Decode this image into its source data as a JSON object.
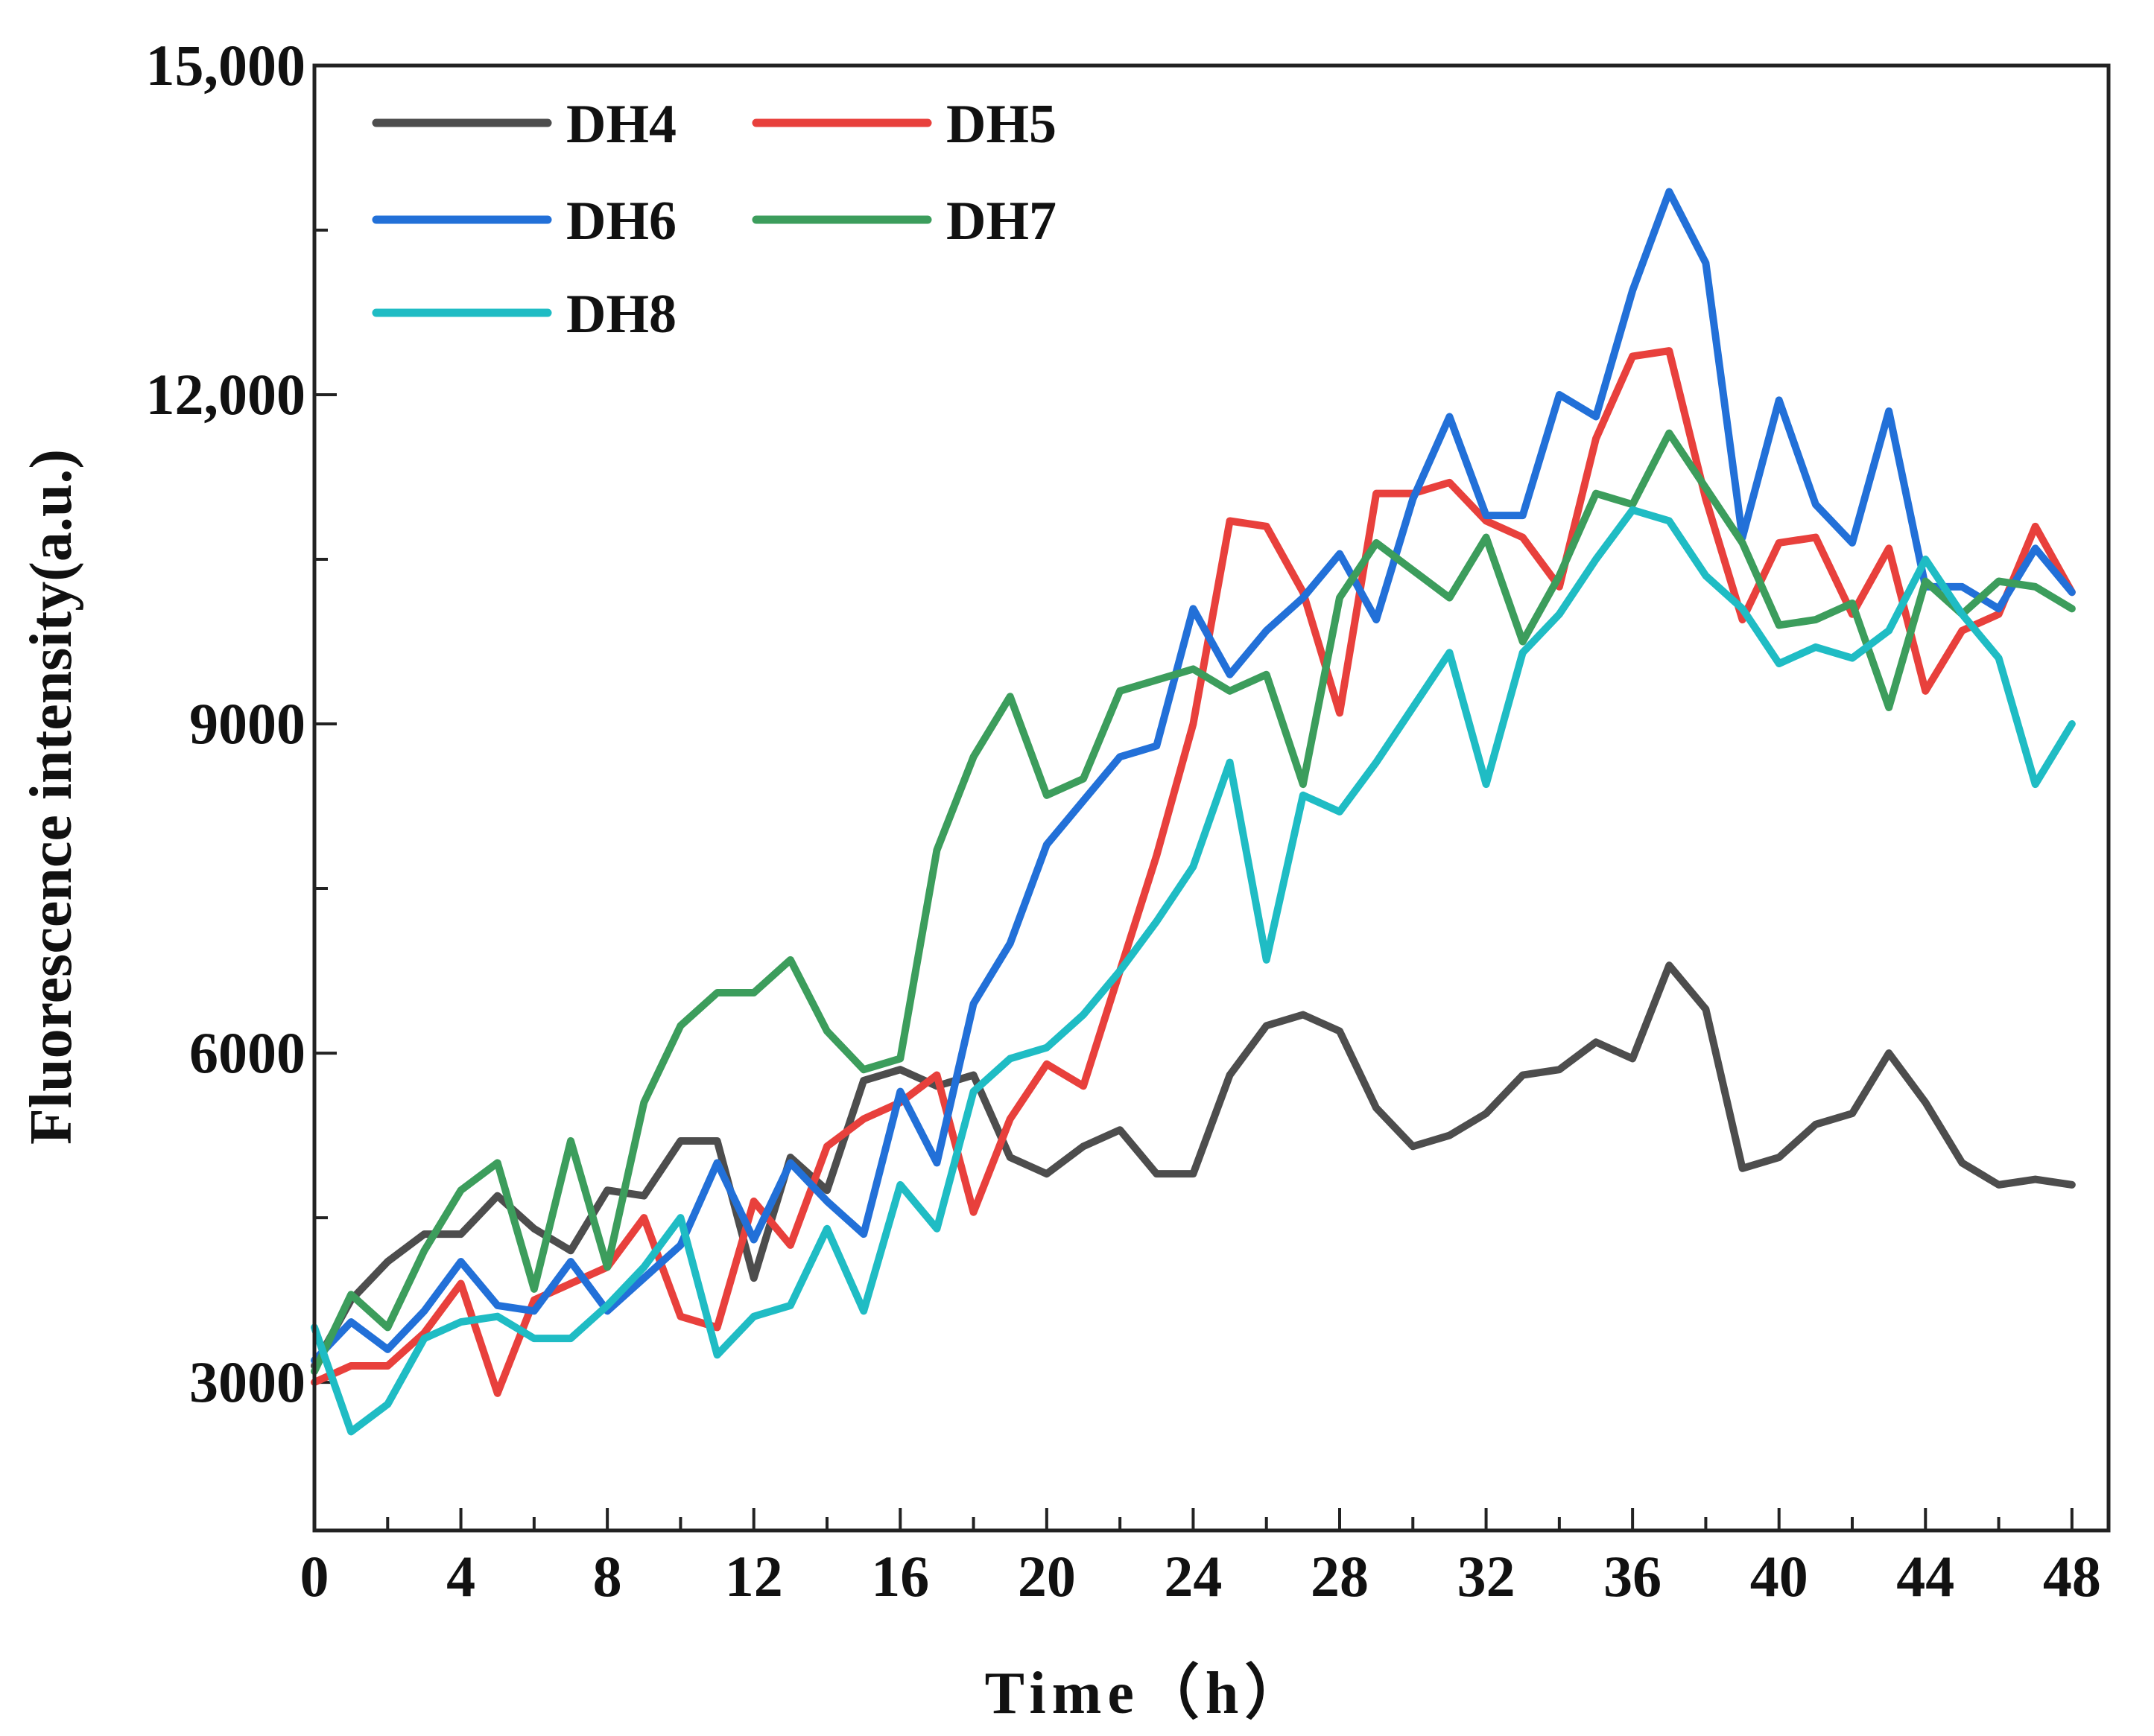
{
  "chart_data": {
    "type": "line",
    "title": "",
    "xlabel": "Time（h）",
    "ylabel": "Fluorescence intensity(a.u.)",
    "xlim": [
      0,
      49
    ],
    "ylim": [
      1650,
      15000
    ],
    "x_ticks": [
      0,
      4,
      8,
      12,
      16,
      20,
      24,
      28,
      32,
      36,
      40,
      44,
      48
    ],
    "x_tick_labels": [
      "0",
      "4",
      "8",
      "12",
      "16",
      "20",
      "24",
      "28",
      "32",
      "36",
      "40",
      "44",
      "48"
    ],
    "y_ticks": [
      3000,
      6000,
      9000,
      12000,
      15000
    ],
    "y_tick_labels": [
      "3000",
      "6000",
      "9000",
      "12,000",
      "15,000"
    ],
    "legend_position": "top-left",
    "x": [
      0,
      1,
      2,
      3,
      4,
      5,
      6,
      7,
      8,
      9,
      10,
      11,
      12,
      13,
      14,
      15,
      16,
      17,
      18,
      19,
      20,
      21,
      22,
      23,
      24,
      25,
      26,
      27,
      28,
      29,
      30,
      31,
      32,
      33,
      34,
      35,
      36,
      37,
      38,
      39,
      40,
      41,
      42,
      43,
      44,
      45,
      46,
      47,
      48
    ],
    "series": [
      {
        "name": "DH4",
        "color": "#4d4d4d",
        "values": [
          3150,
          3750,
          4100,
          4350,
          4350,
          4700,
          4400,
          4200,
          4750,
          4700,
          5200,
          5200,
          3950,
          5050,
          4750,
          5750,
          5850,
          5700,
          5800,
          5050,
          4900,
          5150,
          5300,
          4900,
          4900,
          5800,
          6250,
          6350,
          6200,
          5500,
          5150,
          5250,
          5450,
          5800,
          5850,
          6100,
          5950,
          6800,
          6400,
          4950,
          5050,
          5350,
          5450,
          6000,
          5550,
          5000,
          4800,
          4850,
          4800
        ]
      },
      {
        "name": "DH5",
        "color": "#e8403c",
        "values": [
          3000,
          3150,
          3150,
          3450,
          3900,
          2900,
          3750,
          3900,
          4050,
          4500,
          3600,
          3500,
          4650,
          4250,
          5150,
          5400,
          5550,
          5800,
          4550,
          5400,
          5900,
          5700,
          6750,
          7800,
          9000,
          10850,
          10800,
          10200,
          9100,
          11100,
          11100,
          11200,
          10850,
          10700,
          10250,
          11600,
          12350,
          12400,
          11050,
          9950,
          10650,
          10700,
          10000,
          10600,
          9300,
          9850,
          10000,
          10800,
          10200
        ]
      },
      {
        "name": "DH6",
        "color": "#2270d8",
        "values": [
          3200,
          3550,
          3300,
          3650,
          4100,
          3700,
          3650,
          4100,
          3650,
          3950,
          4250,
          5000,
          4300,
          5000,
          4650,
          4350,
          5650,
          5000,
          6450,
          7000,
          7900,
          8300,
          8700,
          8800,
          10050,
          9450,
          9850,
          10150,
          10550,
          9950,
          11050,
          11800,
          10900,
          10900,
          12000,
          11800,
          12950,
          13850,
          13200,
          10700,
          11950,
          11000,
          10650,
          11850,
          10250,
          10250,
          10050,
          10600,
          10200
        ]
      },
      {
        "name": "DH7",
        "color": "#3c9d5c",
        "values": [
          3100,
          3800,
          3500,
          4200,
          4750,
          5000,
          3850,
          5200,
          4050,
          5550,
          6250,
          6550,
          6550,
          6850,
          6200,
          5850,
          5950,
          7850,
          8700,
          9250,
          8350,
          8500,
          9300,
          9400,
          9500,
          9300,
          9450,
          8450,
          10150,
          10650,
          10400,
          10150,
          10700,
          9750,
          10350,
          11100,
          11000,
          11650,
          11150,
          10650,
          9900,
          9950,
          10100,
          9150,
          10300,
          10000,
          10300,
          10250,
          10050
        ]
      },
      {
        "name": "DH8",
        "color": "#1fbcc4",
        "values": [
          3500,
          2550,
          2800,
          3400,
          3550,
          3600,
          3400,
          3400,
          3700,
          4050,
          4500,
          3250,
          3600,
          3700,
          4400,
          3650,
          4800,
          4400,
          5650,
          5950,
          6050,
          6350,
          6750,
          7200,
          7700,
          8650,
          6850,
          8350,
          8200,
          8650,
          9150,
          9650,
          8450,
          9650,
          10000,
          10500,
          10950,
          10850,
          10350,
          10050,
          9550,
          9700,
          9600,
          9850,
          10500,
          10000,
          9600,
          8450,
          9000
        ]
      }
    ]
  }
}
